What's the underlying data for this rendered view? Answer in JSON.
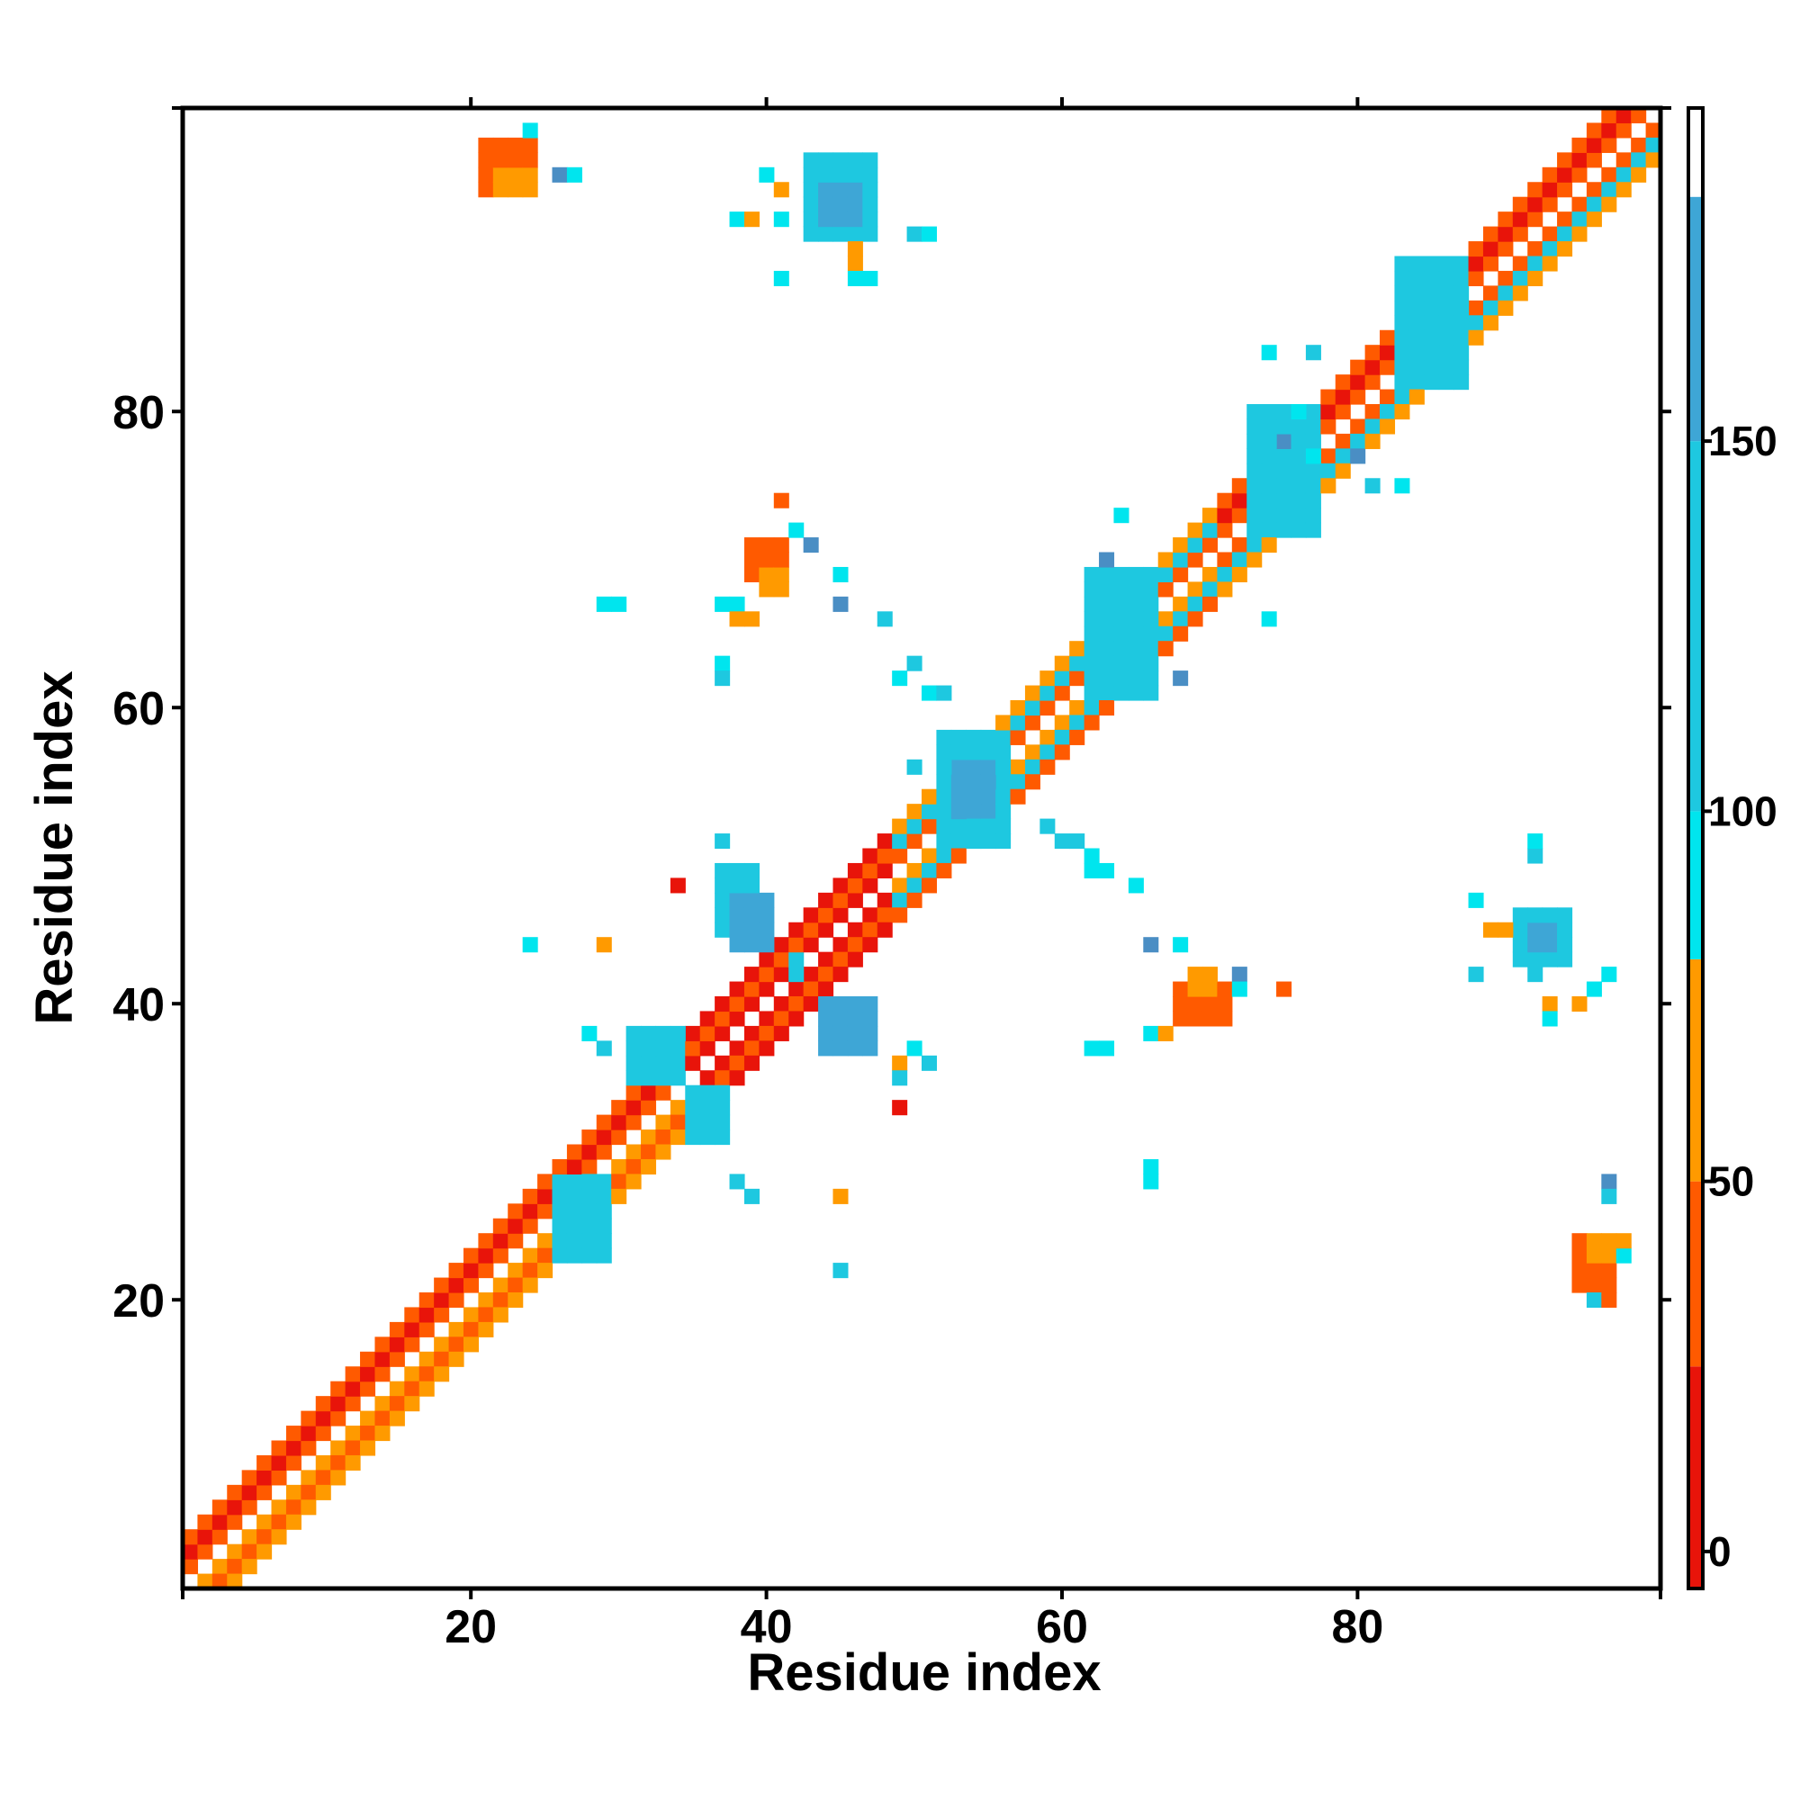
{
  "chart_data": {
    "type": "heatmap",
    "title": "",
    "xlabel": "Residue index",
    "ylabel": "Residue index",
    "xlim": [
      0.5,
      100.5
    ],
    "ylim": [
      0.5,
      100.5
    ],
    "xticks": [
      20,
      40,
      60,
      80
    ],
    "yticks": [
      20,
      40,
      60,
      80
    ],
    "grid": false,
    "colorbar": {
      "ticks": [
        0,
        50,
        100,
        150
      ],
      "range": [
        -5,
        195
      ],
      "bands": [
        {
          "from": -5,
          "to": 25,
          "color": "#e8140a"
        },
        {
          "from": 25,
          "to": 50,
          "color": "#ff5a00"
        },
        {
          "from": 50,
          "to": 80,
          "color": "#ff9a00"
        },
        {
          "from": 80,
          "to": 100,
          "color": "#00e5ee"
        },
        {
          "from": 100,
          "to": 150,
          "color": "#1ec8e0"
        },
        {
          "from": 150,
          "to": 183,
          "color": "#3ea6d6"
        },
        {
          "from": 183,
          "to": 195,
          "color": "#ffffff"
        }
      ]
    },
    "palette": {
      "A": "#e8140a",
      "B": "#ff5a00",
      "C": "#ff9a00",
      "D": "#00e5ee",
      "E": "#1ec8e0",
      "F": "#3ea6d6",
      "G": "#4a8ec4"
    },
    "diagonal_bands": [
      {
        "from": 1,
        "to": 34,
        "offsets": [
          [
            -1,
            "C"
          ],
          [
            -2,
            "B"
          ],
          [
            -3,
            "C"
          ],
          [
            1,
            "B"
          ],
          [
            2,
            "A"
          ],
          [
            3,
            "B"
          ]
        ]
      },
      {
        "from": 35,
        "to": 48,
        "offsets": [
          [
            -1,
            "A"
          ],
          [
            -2,
            "B"
          ],
          [
            -3,
            "A"
          ],
          [
            1,
            "A"
          ],
          [
            2,
            "B"
          ],
          [
            3,
            "A"
          ]
        ]
      },
      {
        "from": 49,
        "to": 70,
        "offsets": [
          [
            -1,
            "C"
          ],
          [
            -2,
            "E"
          ],
          [
            -3,
            "B"
          ],
          [
            1,
            "B"
          ],
          [
            2,
            "E"
          ],
          [
            3,
            "C"
          ]
        ]
      },
      {
        "from": 71,
        "to": 100,
        "offsets": [
          [
            -1,
            "B"
          ],
          [
            -2,
            "E"
          ],
          [
            -3,
            "C"
          ],
          [
            1,
            "B"
          ],
          [
            2,
            "A"
          ],
          [
            3,
            "B"
          ]
        ]
      }
    ],
    "blocks": [
      {
        "x": [
          21,
          24
        ],
        "y": [
          95,
          98
        ],
        "c": "B"
      },
      {
        "x": [
          22,
          24
        ],
        "y": [
          95,
          96
        ],
        "c": "C"
      },
      {
        "x": [
          43,
          47
        ],
        "y": [
          92,
          97
        ],
        "c": "E"
      },
      {
        "x": [
          44,
          46
        ],
        "y": [
          93,
          95
        ],
        "c": "F"
      },
      {
        "x": [
          39,
          41
        ],
        "y": [
          69,
          71
        ],
        "c": "B"
      },
      {
        "x": [
          40,
          41
        ],
        "y": [
          68,
          69
        ],
        "c": "C"
      },
      {
        "x": [
          37,
          39
        ],
        "y": [
          45,
          49
        ],
        "c": "E"
      },
      {
        "x": [
          38,
          40
        ],
        "y": [
          44,
          47
        ],
        "c": "F"
      },
      {
        "x": [
          44,
          47
        ],
        "y": [
          37,
          40
        ],
        "c": "F"
      },
      {
        "x": [
          31,
          34
        ],
        "y": [
          35,
          38
        ],
        "c": "E"
      },
      {
        "x": [
          35,
          37
        ],
        "y": [
          31,
          34
        ],
        "c": "E"
      },
      {
        "x": [
          26,
          29
        ],
        "y": [
          23,
          28
        ],
        "c": "E"
      },
      {
        "x": [
          52,
          56
        ],
        "y": [
          51,
          58
        ],
        "c": "E"
      },
      {
        "x": [
          53,
          55
        ],
        "y": [
          53,
          56
        ],
        "c": "F"
      },
      {
        "x": [
          62,
          66
        ],
        "y": [
          61,
          69
        ],
        "c": "E"
      },
      {
        "x": [
          73,
          77
        ],
        "y": [
          72,
          80
        ],
        "c": "E"
      },
      {
        "x": [
          83,
          87
        ],
        "y": [
          82,
          90
        ],
        "c": "E"
      },
      {
        "x": [
          68,
          71
        ],
        "y": [
          39,
          41
        ],
        "c": "B"
      },
      {
        "x": [
          69,
          70
        ],
        "y": [
          41,
          42
        ],
        "c": "C"
      },
      {
        "x": [
          91,
          94
        ],
        "y": [
          43,
          46
        ],
        "c": "E"
      },
      {
        "x": [
          92,
          93
        ],
        "y": [
          44,
          45
        ],
        "c": "F"
      },
      {
        "x": [
          95,
          97
        ],
        "y": [
          21,
          24
        ],
        "c": "B"
      },
      {
        "x": [
          96,
          97
        ],
        "y": [
          23,
          24
        ],
        "c": "C"
      }
    ],
    "cells": [
      [
        24,
        99,
        "D"
      ],
      [
        26,
        96,
        "G"
      ],
      [
        27,
        96,
        "D"
      ],
      [
        40,
        96,
        "D"
      ],
      [
        41,
        95,
        "C"
      ],
      [
        38,
        93,
        "D"
      ],
      [
        39,
        93,
        "C"
      ],
      [
        41,
        93,
        "D"
      ],
      [
        46,
        91,
        "C"
      ],
      [
        46,
        90,
        "C"
      ],
      [
        41,
        89,
        "D"
      ],
      [
        46,
        89,
        "D"
      ],
      [
        47,
        89,
        "D"
      ],
      [
        50,
        92,
        "E"
      ],
      [
        51,
        92,
        "D"
      ],
      [
        41,
        74,
        "B"
      ],
      [
        42,
        72,
        "D"
      ],
      [
        43,
        71,
        "G"
      ],
      [
        45,
        69,
        "D"
      ],
      [
        37,
        67,
        "D"
      ],
      [
        38,
        67,
        "D"
      ],
      [
        38,
        66,
        "C"
      ],
      [
        39,
        66,
        "C"
      ],
      [
        45,
        67,
        "G"
      ],
      [
        48,
        66,
        "E"
      ],
      [
        29,
        67,
        "D"
      ],
      [
        30,
        67,
        "D"
      ],
      [
        37,
        63,
        "D"
      ],
      [
        37,
        62,
        "E"
      ],
      [
        49,
        62,
        "D"
      ],
      [
        50,
        63,
        "E"
      ],
      [
        51,
        61,
        "D"
      ],
      [
        52,
        61,
        "E"
      ],
      [
        50,
        56,
        "E"
      ],
      [
        37,
        51,
        "E"
      ],
      [
        34,
        48,
        "A"
      ],
      [
        24,
        44,
        "D"
      ],
      [
        29,
        44,
        "C"
      ],
      [
        42,
        43,
        "E"
      ],
      [
        42,
        42,
        "E"
      ],
      [
        28,
        38,
        "D"
      ],
      [
        29,
        37,
        "E"
      ],
      [
        49,
        36,
        "C"
      ],
      [
        49,
        35,
        "E"
      ],
      [
        50,
        37,
        "D"
      ],
      [
        51,
        36,
        "E"
      ],
      [
        49,
        33,
        "A"
      ],
      [
        38,
        28,
        "E"
      ],
      [
        39,
        27,
        "E"
      ],
      [
        45,
        27,
        "C"
      ],
      [
        45,
        22,
        "E"
      ],
      [
        59,
        52,
        "E"
      ],
      [
        60,
        51,
        "E"
      ],
      [
        61,
        51,
        "E"
      ],
      [
        62,
        50,
        "D"
      ],
      [
        62,
        49,
        "D"
      ],
      [
        63,
        49,
        "D"
      ],
      [
        65,
        48,
        "D"
      ],
      [
        66,
        44,
        "G"
      ],
      [
        68,
        44,
        "D"
      ],
      [
        72,
        42,
        "G"
      ],
      [
        72,
        41,
        "D"
      ],
      [
        75,
        41,
        "B"
      ],
      [
        62,
        37,
        "D"
      ],
      [
        63,
        37,
        "D"
      ],
      [
        66,
        38,
        "D"
      ],
      [
        67,
        38,
        "C"
      ],
      [
        66,
        29,
        "D"
      ],
      [
        66,
        28,
        "D"
      ],
      [
        64,
        73,
        "D"
      ],
      [
        63,
        70,
        "G"
      ],
      [
        68,
        62,
        "G"
      ],
      [
        74,
        66,
        "D"
      ],
      [
        77,
        77,
        "D"
      ],
      [
        74,
        84,
        "D"
      ],
      [
        75,
        78,
        "G"
      ],
      [
        76,
        80,
        "D"
      ],
      [
        77,
        84,
        "E"
      ],
      [
        80,
        77,
        "G"
      ],
      [
        81,
        75,
        "E"
      ],
      [
        83,
        75,
        "D"
      ],
      [
        88,
        47,
        "D"
      ],
      [
        89,
        45,
        "C"
      ],
      [
        90,
        45,
        "C"
      ],
      [
        92,
        50,
        "E"
      ],
      [
        92,
        51,
        "D"
      ],
      [
        88,
        42,
        "E"
      ],
      [
        92,
        42,
        "E"
      ],
      [
        93,
        40,
        "C"
      ],
      [
        93,
        39,
        "D"
      ],
      [
        95,
        40,
        "C"
      ],
      [
        97,
        42,
        "D"
      ],
      [
        96,
        41,
        "D"
      ],
      [
        97,
        28,
        "G"
      ],
      [
        97,
        27,
        "E"
      ],
      [
        98,
        23,
        "D"
      ],
      [
        98,
        24,
        "C"
      ],
      [
        96,
        20,
        "E"
      ],
      [
        97,
        20,
        "B"
      ]
    ]
  }
}
